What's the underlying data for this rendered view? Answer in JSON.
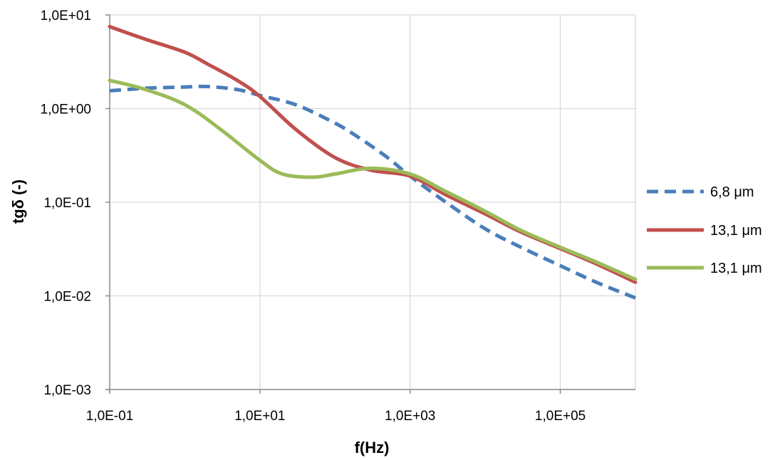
{
  "chart_data": {
    "type": "line",
    "xlabel": "f(Hz)",
    "ylabel": "tgδ (-)",
    "xscale": "log",
    "yscale": "log",
    "xlim": [
      0.1,
      1000000
    ],
    "ylim": [
      0.001,
      10
    ],
    "grid": true,
    "legend_position": "right",
    "x_ticks": [
      {
        "value": 0.1,
        "label": "1,0E-01"
      },
      {
        "value": 10,
        "label": "1,0E+01"
      },
      {
        "value": 1000,
        "label": "1,0E+03"
      },
      {
        "value": 100000,
        "label": "1,0E+05"
      }
    ],
    "y_ticks": [
      {
        "value": 10,
        "label": "1,0E+01"
      },
      {
        "value": 1,
        "label": "1,0E+00"
      },
      {
        "value": 0.1,
        "label": "1,0E-01"
      },
      {
        "value": 0.01,
        "label": "1,0E-02"
      },
      {
        "value": 0.001,
        "label": "1,0E-03"
      }
    ],
    "series": [
      {
        "name": "6,8 μm",
        "color": "#4a7ebb",
        "dash": true,
        "x": [
          0.1,
          0.3,
          1,
          2,
          5,
          10,
          30,
          100,
          200,
          500,
          1000,
          3000,
          10000,
          30000,
          100000,
          300000,
          1000000
        ],
        "y": [
          1.55,
          1.65,
          1.7,
          1.72,
          1.6,
          1.38,
          1.1,
          0.7,
          0.5,
          0.3,
          0.19,
          0.1,
          0.052,
          0.033,
          0.021,
          0.014,
          0.0095
        ]
      },
      {
        "name": "13,1 μm",
        "color": "#c0504d",
        "dash": false,
        "x": [
          0.1,
          0.3,
          1,
          2,
          5,
          10,
          30,
          100,
          300,
          1000,
          3000,
          10000,
          30000,
          100000,
          300000,
          1000000
        ],
        "y": [
          7.5,
          5.5,
          4.0,
          3.0,
          2.0,
          1.35,
          0.6,
          0.3,
          0.22,
          0.19,
          0.12,
          0.075,
          0.048,
          0.032,
          0.022,
          0.014
        ]
      },
      {
        "name": "13,1 μm",
        "color": "#9bbb59",
        "dash": false,
        "x": [
          0.1,
          0.3,
          1,
          3,
          10,
          20,
          50,
          100,
          300,
          1000,
          3000,
          10000,
          30000,
          100000,
          300000,
          1000000
        ],
        "y": [
          2.0,
          1.6,
          1.1,
          0.6,
          0.28,
          0.2,
          0.185,
          0.2,
          0.23,
          0.2,
          0.13,
          0.08,
          0.05,
          0.033,
          0.023,
          0.015
        ]
      }
    ]
  }
}
